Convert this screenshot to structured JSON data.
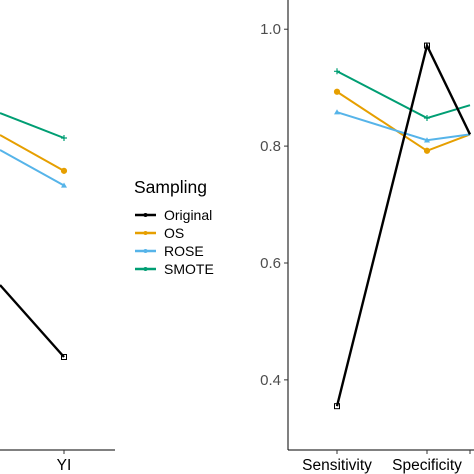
{
  "chart_data": [
    {
      "type": "line",
      "title": "",
      "xlabel": "",
      "ylabel": "",
      "categories": [
        "YI"
      ],
      "series": [
        {
          "name": "Original",
          "color": "#000000",
          "marker": "square",
          "values": [
            0.55
          ]
        },
        {
          "name": "OS",
          "color": "#E69F00",
          "marker": "circle",
          "values": [
            0.805
          ]
        },
        {
          "name": "ROSE",
          "color": "#56B4E9",
          "marker": "triangle",
          "values": [
            0.785
          ]
        },
        {
          "name": "SMOTE",
          "color": "#009E73",
          "marker": "cross",
          "values": [
            0.85
          ]
        }
      ],
      "partial_left_segments": true
    },
    {
      "type": "line",
      "title": "",
      "xlabel": "",
      "ylabel": "",
      "categories": [
        "Sensitivity",
        "Specificity",
        ""
      ],
      "ylim": [
        0.28,
        1.05
      ],
      "yticks": [
        "0.4",
        "0.6",
        "0.8",
        "1.0"
      ],
      "series": [
        {
          "name": "Original",
          "color": "#000000",
          "marker": "square",
          "values": [
            0.355,
            0.972,
            0.82
          ]
        },
        {
          "name": "OS",
          "color": "#E69F00",
          "marker": "circle",
          "values": [
            0.893,
            0.792,
            0.82
          ]
        },
        {
          "name": "ROSE",
          "color": "#56B4E9",
          "marker": "triangle",
          "values": [
            0.858,
            0.81,
            0.82
          ]
        },
        {
          "name": "SMOTE",
          "color": "#009E73",
          "marker": "cross",
          "values": [
            0.928,
            0.848,
            0.87
          ]
        }
      ]
    }
  ],
  "legend": {
    "title": "Sampling",
    "items": [
      {
        "label": "Original",
        "color": "#000000"
      },
      {
        "label": "OS",
        "color": "#E69F00"
      },
      {
        "label": "ROSE",
        "color": "#56B4E9"
      },
      {
        "label": "SMOTE",
        "color": "#009E73"
      }
    ]
  }
}
